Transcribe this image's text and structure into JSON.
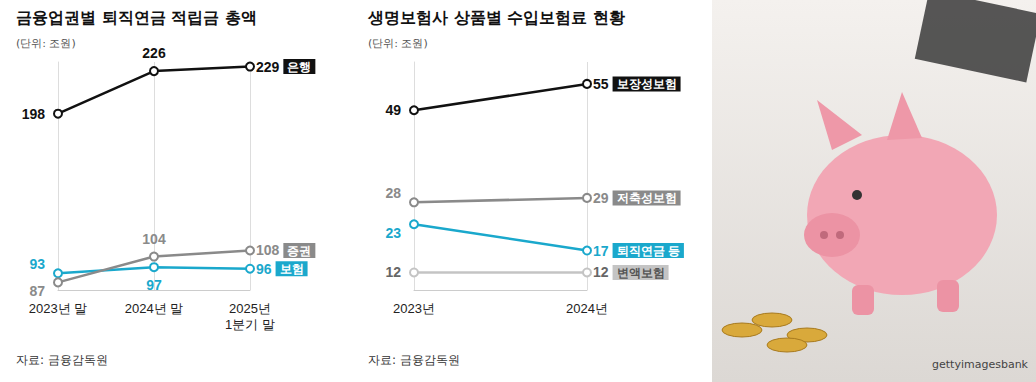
{
  "chart_data": [
    {
      "type": "line",
      "title": "금융업권별 퇴직연금 적립금 총액",
      "subtitle": "(단위: 조원)",
      "categories": [
        "2023년 말",
        "2024년 말",
        "2025년 1분기 말"
      ],
      "series": [
        {
          "name": "은행",
          "color": "#111111",
          "values": [
            198,
            226,
            229
          ]
        },
        {
          "name": "증권",
          "color": "#8a8a8a",
          "values": [
            87,
            104,
            108
          ]
        },
        {
          "name": "보험",
          "color": "#1aa8cc",
          "values": [
            93,
            97,
            96
          ]
        }
      ],
      "ylim": [
        82,
        232
      ],
      "tick_labels": "x",
      "grid": true,
      "data_labels": true,
      "marker": "emptyCircle",
      "annotations": [
        "자료: 금융감독원"
      ]
    },
    {
      "type": "line",
      "title": "생명보험사 상품별 수입보험료 현황",
      "subtitle": "(단위: 조원)",
      "categories": [
        "2023년",
        "2024년"
      ],
      "series": [
        {
          "name": "보장성보험",
          "color": "#111111",
          "values": [
            49,
            55
          ]
        },
        {
          "name": "저축성보험",
          "color": "#8a8a8a",
          "values": [
            28,
            29
          ]
        },
        {
          "name": "퇴직연금 등",
          "color": "#1aa8cc",
          "values": [
            23,
            17
          ]
        },
        {
          "name": "변액보험",
          "color": "#c4c4c4",
          "values": [
            12,
            12
          ]
        }
      ],
      "ylim": [
        8,
        60
      ],
      "tick_labels": "x",
      "grid": true,
      "data_labels": true,
      "marker": "emptyCircle",
      "annotations": [
        "자료: 금융감독원"
      ]
    }
  ],
  "image": {
    "credit": "gettyimagesbank"
  }
}
